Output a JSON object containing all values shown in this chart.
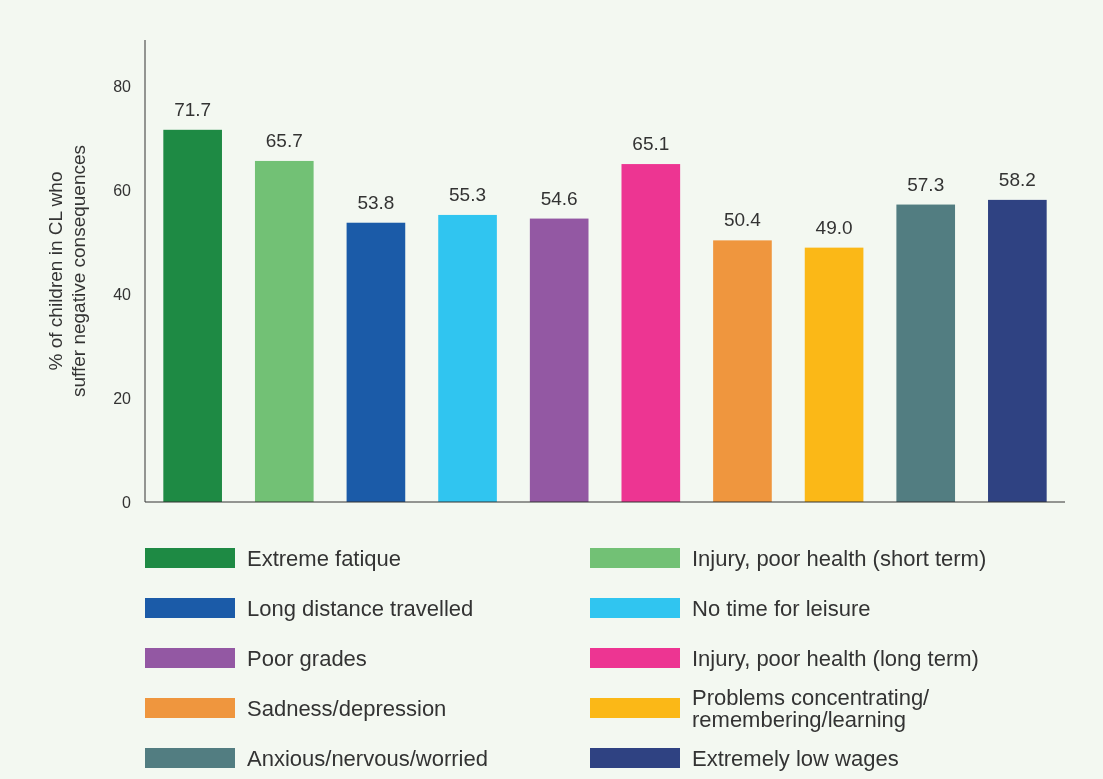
{
  "chart_data": {
    "type": "bar",
    "ylabel": "% of children in CL who\nsuffer negative consequences",
    "categories": [
      null,
      null,
      null,
      null,
      null,
      null,
      null,
      null,
      null,
      null
    ],
    "series": [
      {
        "name": "Extreme fatique",
        "color": "#1e8a44",
        "values": [
          71.7,
          null,
          null,
          null,
          null,
          null,
          null,
          null,
          null,
          null
        ]
      },
      {
        "name": "Injury, poor health (short term)",
        "color": "#72c175",
        "values": [
          null,
          65.7,
          null,
          null,
          null,
          null,
          null,
          null,
          null,
          null
        ]
      },
      {
        "name": "Long distance travelled",
        "color": "#1b5ba8",
        "values": [
          null,
          null,
          53.8,
          null,
          null,
          null,
          null,
          null,
          null,
          null
        ]
      },
      {
        "name": "No time for leisure",
        "color": "#30c5f0",
        "values": [
          null,
          null,
          null,
          55.3,
          null,
          null,
          null,
          null,
          null,
          null
        ]
      },
      {
        "name": "Poor grades",
        "color": "#9358a3",
        "values": [
          null,
          null,
          null,
          null,
          54.6,
          null,
          null,
          null,
          null,
          null
        ]
      },
      {
        "name": "Injury, poor health (long term)",
        "color": "#ed3592",
        "values": [
          null,
          null,
          null,
          null,
          null,
          65.1,
          null,
          null,
          null,
          null
        ]
      },
      {
        "name": "Sadness/depression",
        "color": "#ef963e",
        "values": [
          null,
          null,
          null,
          null,
          null,
          null,
          50.4,
          null,
          null,
          null
        ]
      },
      {
        "name": "Problems concentrating/remembering/learning",
        "color": "#fbb817",
        "values": [
          null,
          null,
          null,
          null,
          null,
          null,
          null,
          49.0,
          null,
          null
        ],
        "value_labels": [
          null,
          null,
          null,
          null,
          null,
          null,
          null,
          "49.0",
          null,
          null
        ]
      },
      {
        "name": "Anxious/nervous/worried",
        "color": "#527d81",
        "values": [
          null,
          null,
          null,
          null,
          null,
          null,
          null,
          null,
          57.3,
          null
        ]
      },
      {
        "name": "Extremely low wages",
        "color": "#2f4282",
        "values": [
          null,
          null,
          null,
          null,
          null,
          null,
          null,
          null,
          null,
          58.2
        ]
      }
    ],
    "ylim": [
      0,
      89
    ],
    "yticks": [
      0,
      20,
      40,
      60,
      80
    ],
    "data_labels": true,
    "grid": false,
    "tick_labels": "y",
    "legend": "bottom"
  }
}
